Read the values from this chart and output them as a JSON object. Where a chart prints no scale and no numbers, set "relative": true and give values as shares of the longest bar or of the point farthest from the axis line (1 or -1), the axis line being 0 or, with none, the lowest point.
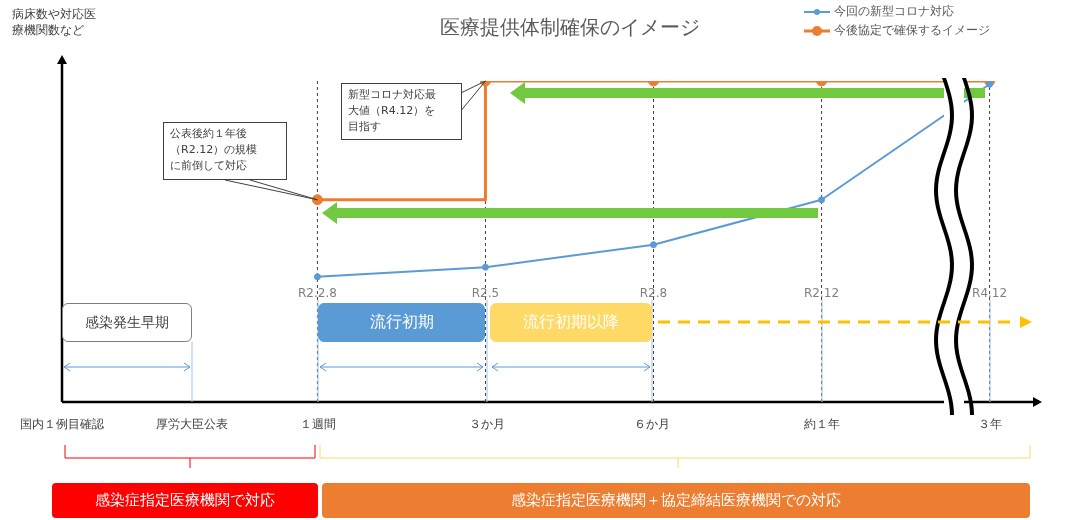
{
  "chart_data": {
    "type": "line",
    "title": "医療提供体制確保のイメージ",
    "relative": true,
    "categories": [
      "R2.2.8",
      "R2.5",
      "R2.8",
      "R2.12",
      "R4.12"
    ],
    "series": [
      {
        "name": "今回の新型コロナ対応",
        "color": "#5b9bd5",
        "values": [
          0.39,
          0.42,
          0.49,
          0.63,
          0.99
        ]
      },
      {
        "name": "今後協定で確保するイメージ",
        "color": "#ed7d31",
        "type": "step",
        "values": [
          0.63,
          1,
          1,
          1,
          1
        ]
      }
    ],
    "marker": "circle",
    "line_style": "solid",
    "grid": "x",
    "legend": "top right",
    "annotations": [
      "公表後約１年後（R2.12）の規模に前倒して対応",
      "新型コロナ対応最大値（R4.12）を目指す",
      "病床数や対応医療機関数など",
      "感染発生早期",
      "流行初期",
      "流行初期以降",
      "国内１例目確認",
      "厚労大臣公表",
      "１週間",
      "３か月",
      "６か月",
      "約１年",
      "３年",
      "感染症指定医療機関で対応",
      "感染症指定医療機関＋協定締結医療機関での対応"
    ]
  }
}
